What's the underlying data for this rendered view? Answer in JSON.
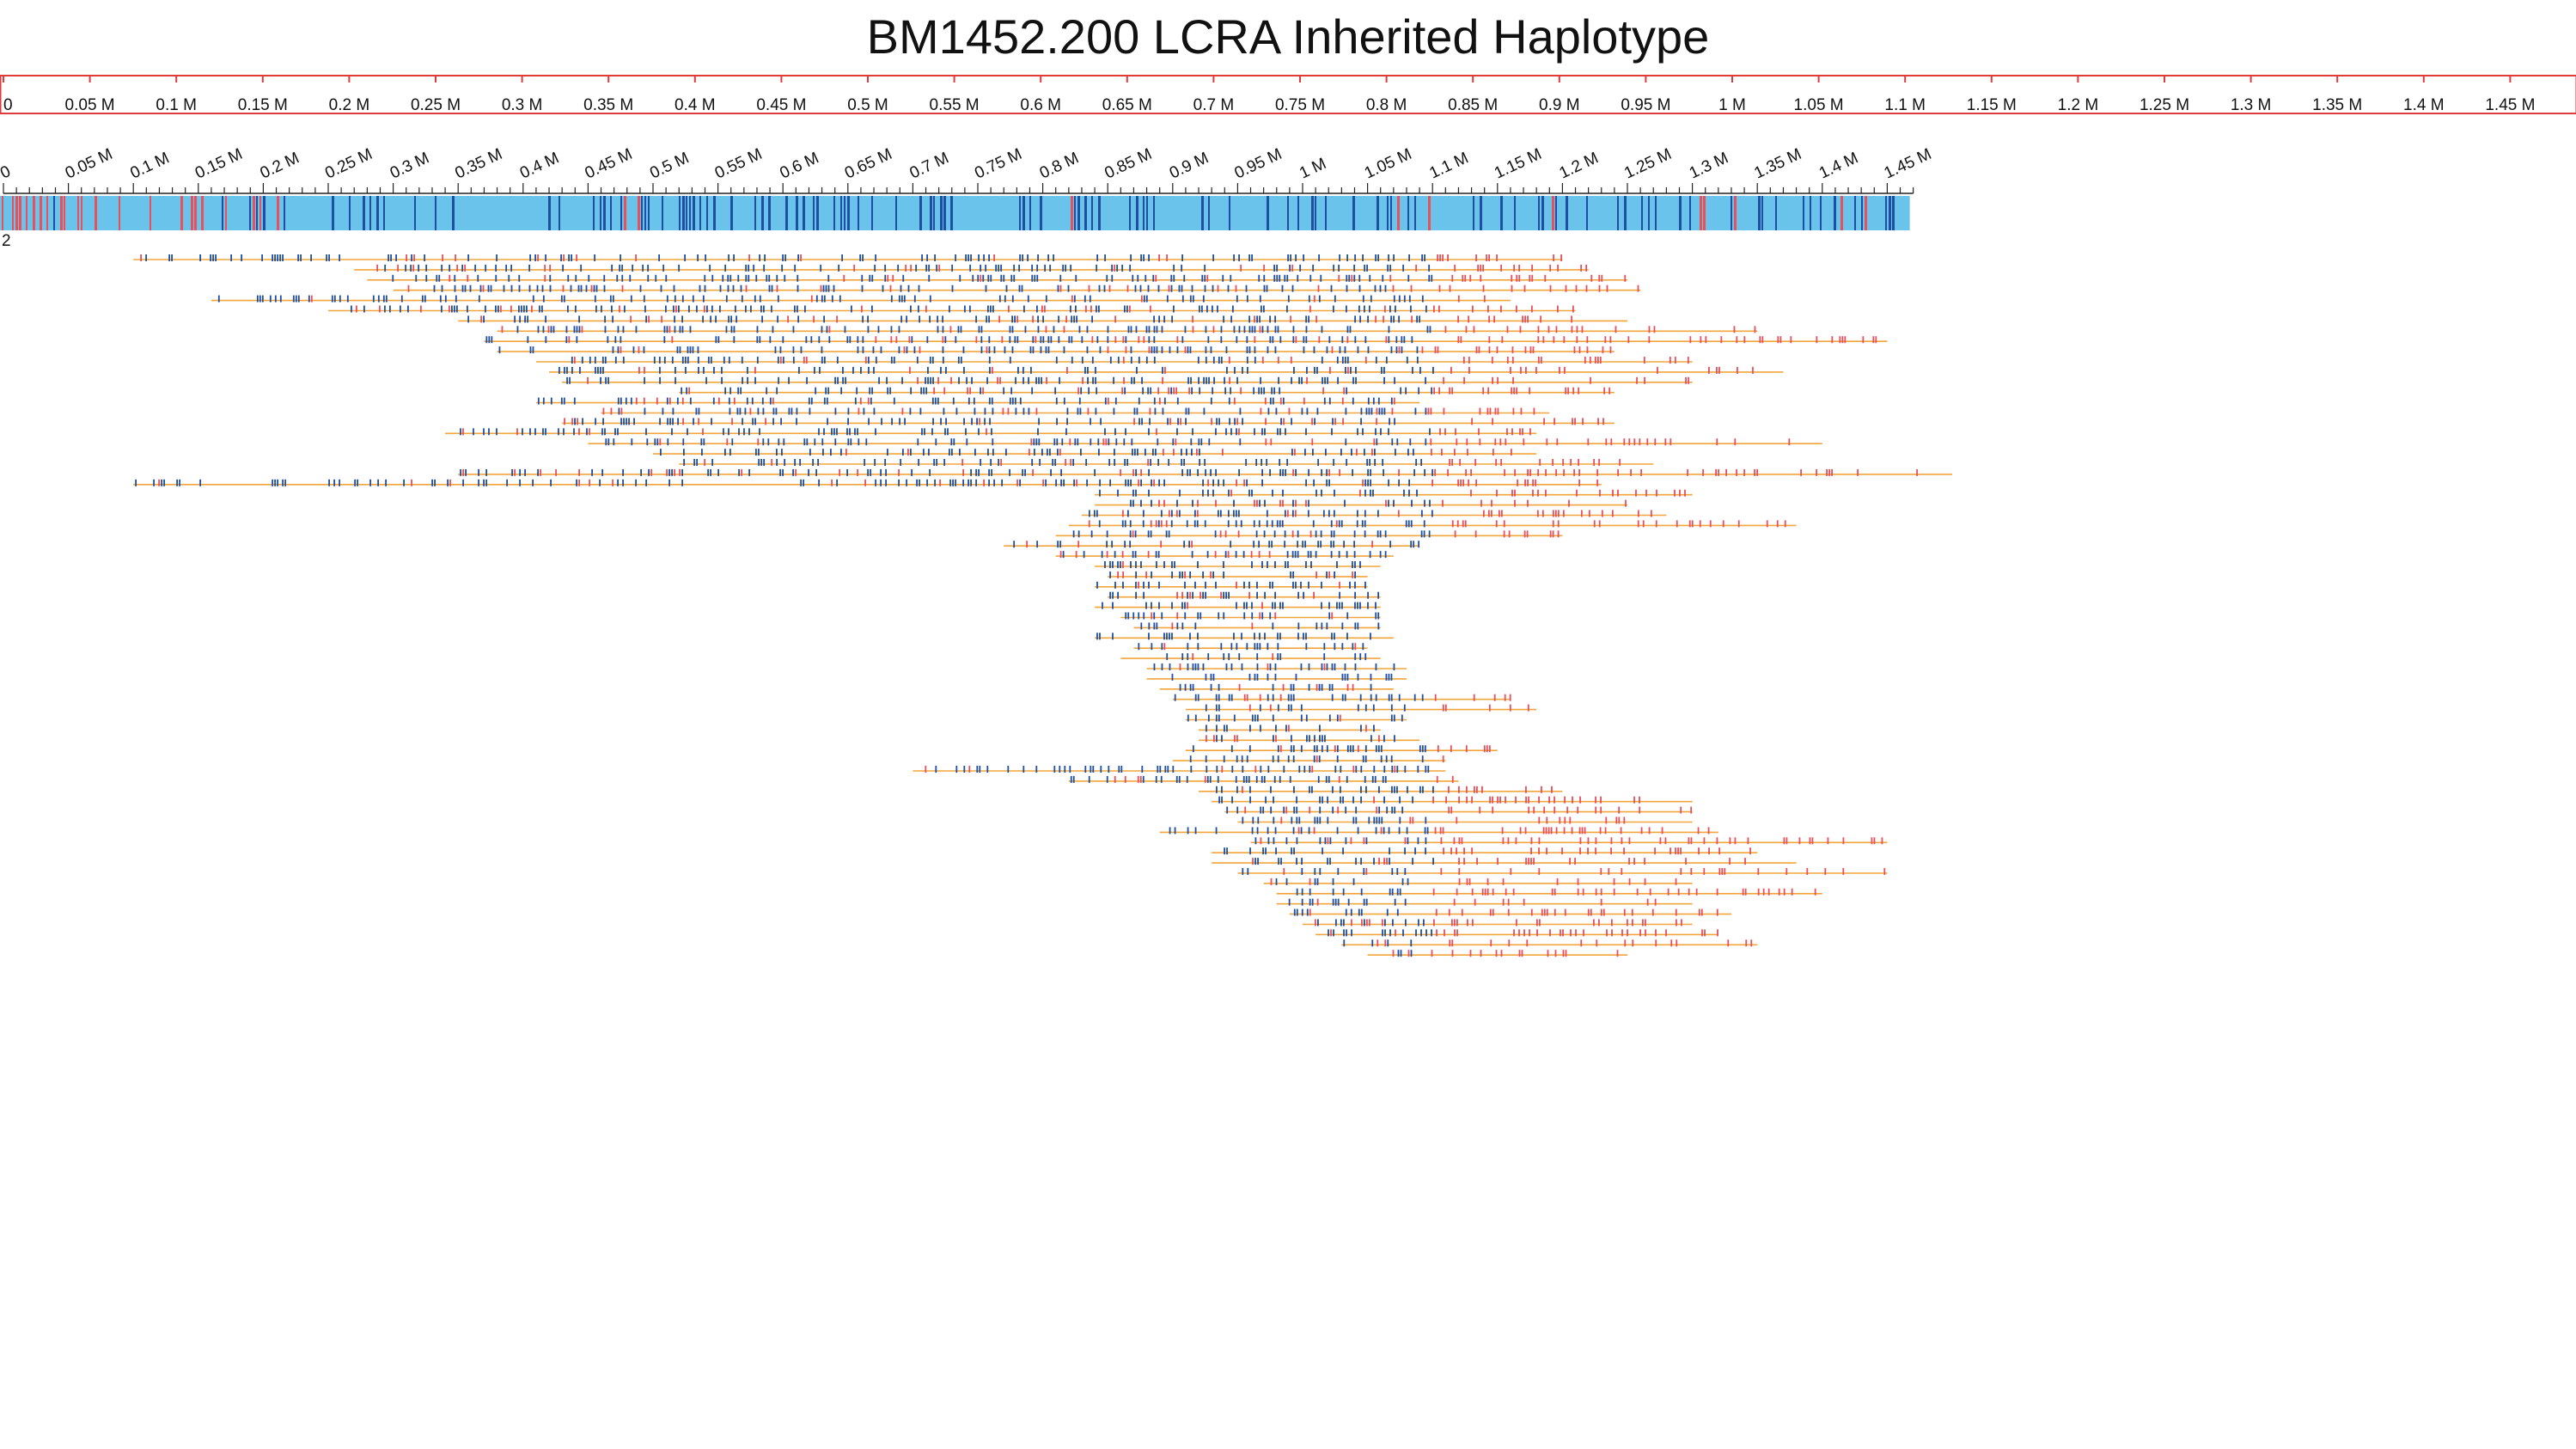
{
  "title": "BM1452.200 LCRA Inherited Haplotype",
  "colors": {
    "scale_border": "#e03a3a",
    "haplotype_bar": "#69c3ea",
    "variant_blue": "#1f4fa3",
    "variant_red": "#e8505b",
    "read_line": "#f2a53a",
    "text": "#111111"
  },
  "top_scale": {
    "unit_suffix": " M",
    "max_mb": 1.45,
    "step_mb": 0.05,
    "labels": [
      "0",
      "0.05 M",
      "0.1 M",
      "0.15 M",
      "0.2 M",
      "0.25 M",
      "0.3 M",
      "0.35 M",
      "0.4 M",
      "0.45 M",
      "0.5 M",
      "0.55 M",
      "0.6 M",
      "0.65 M",
      "0.7 M",
      "0.75 M",
      "0.8 M",
      "0.85 M",
      "0.9 M",
      "0.95 M",
      "1 M",
      "1.05 M",
      "1.1 M",
      "1.15 M",
      "1.2 M",
      "1.25 M",
      "1.3 M",
      "1.35 M",
      "1.4 M",
      "1.45 M"
    ]
  },
  "haplotype_scale": {
    "max_mb": 1.45,
    "labels": [
      "0",
      "0.05 M",
      "0.1 M",
      "0.15 M",
      "0.2 M",
      "0.25 M",
      "0.3 M",
      "0.35 M",
      "0.4 M",
      "0.45 M",
      "0.5 M",
      "0.55 M",
      "0.6 M",
      "0.65 M",
      "0.7 M",
      "0.75 M",
      "0.8 M",
      "0.85 M",
      "0.9 M",
      "0.95 M",
      "1 M",
      "1.05 M",
      "1.1 M",
      "1.15 M",
      "1.2 M",
      "1.25 M",
      "1.3 M",
      "1.35 M",
      "1.4 M",
      "1.45 M"
    ]
  },
  "haplotype": {
    "label": "2",
    "length_mb": 1.47
  },
  "reads": {
    "start_mb": [
      0.1,
      0.27,
      0.28,
      0.3,
      0.16,
      0.25,
      0.35,
      0.38,
      0.37,
      0.38,
      0.41,
      0.42,
      0.43,
      0.52,
      0.41,
      0.46,
      0.43,
      0.34,
      0.45,
      0.5,
      0.52,
      0.35,
      0.1,
      0.84,
      0.84,
      0.83,
      0.82,
      0.81,
      0.77,
      0.81,
      0.84,
      0.85,
      0.84,
      0.85,
      0.84,
      0.86,
      0.87,
      0.84,
      0.87,
      0.86,
      0.88,
      0.88,
      0.89,
      0.9,
      0.91,
      0.91,
      0.92,
      0.92,
      0.91,
      0.9,
      0.7,
      0.82,
      0.92,
      0.93,
      0.94,
      0.95,
      0.89,
      0.96,
      0.93,
      0.93,
      0.95,
      0.97,
      0.98,
      0.98,
      0.99,
      1.0,
      1.01,
      1.03,
      1.05
    ],
    "end_mb": [
      1.2,
      1.22,
      1.25,
      1.26,
      1.16,
      1.21,
      1.25,
      1.35,
      1.45,
      1.24,
      1.3,
      1.37,
      1.3,
      1.24,
      1.09,
      1.19,
      1.24,
      1.18,
      1.4,
      1.18,
      1.27,
      1.5,
      1.23,
      1.3,
      1.25,
      1.28,
      1.38,
      1.2,
      1.09,
      1.07,
      1.06,
      1.05,
      1.05,
      1.06,
      1.06,
      1.06,
      1.06,
      1.07,
      1.05,
      1.06,
      1.08,
      1.08,
      1.07,
      1.16,
      1.18,
      1.08,
      1.06,
      1.09,
      1.15,
      1.11,
      1.11,
      1.12,
      1.2,
      1.3,
      1.3,
      1.3,
      1.32,
      1.45,
      1.35,
      1.38,
      1.45,
      1.3,
      1.4,
      1.3,
      1.33,
      1.3,
      1.32,
      1.35,
      1.25
    ]
  }
}
